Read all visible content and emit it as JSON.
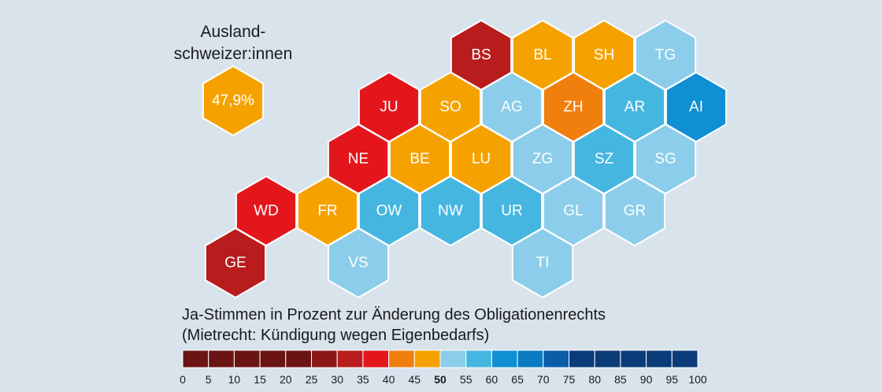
{
  "abroad": {
    "title_line1": "Ausland-",
    "title_line2": "schweizer:innen",
    "value_label": "47,9%",
    "color": "#f5a200"
  },
  "map": {
    "stroke": "#ffffff",
    "cantons": [
      {
        "code": "BS",
        "col": 2,
        "row": 0,
        "color": "#b81c1c"
      },
      {
        "code": "BL",
        "col": 3,
        "row": 0,
        "color": "#f5a200"
      },
      {
        "code": "SH",
        "col": 4,
        "row": 0,
        "color": "#f5a200"
      },
      {
        "code": "TG",
        "col": 5,
        "row": 0,
        "color": "#8bcdea"
      },
      {
        "code": "JU",
        "col": 1,
        "row": 1,
        "color": "#e3161c"
      },
      {
        "code": "SO",
        "col": 2,
        "row": 1,
        "color": "#f5a200"
      },
      {
        "code": "AG",
        "col": 3,
        "row": 1,
        "color": "#8bcdea"
      },
      {
        "code": "ZH",
        "col": 4,
        "row": 1,
        "color": "#f07f0e"
      },
      {
        "code": "AR",
        "col": 5,
        "row": 1,
        "color": "#45b6e0"
      },
      {
        "code": "AI",
        "col": 6,
        "row": 1,
        "color": "#0f8fd4"
      },
      {
        "code": "NE",
        "col": 1,
        "row": 2,
        "color": "#e3161c"
      },
      {
        "code": "BE",
        "col": 2,
        "row": 2,
        "color": "#f5a200"
      },
      {
        "code": "LU",
        "col": 3,
        "row": 2,
        "color": "#f5a200"
      },
      {
        "code": "ZG",
        "col": 4,
        "row": 2,
        "color": "#8bcdea"
      },
      {
        "code": "SZ",
        "col": 5,
        "row": 2,
        "color": "#45b6e0"
      },
      {
        "code": "SG",
        "col": 6,
        "row": 2,
        "color": "#8bcdea"
      },
      {
        "code": "WD",
        "col": 0,
        "row": 3,
        "color": "#e3161c"
      },
      {
        "code": "FR",
        "col": 1,
        "row": 3,
        "color": "#f5a200"
      },
      {
        "code": "OW",
        "col": 2,
        "row": 3,
        "color": "#45b6e0"
      },
      {
        "code": "NW",
        "col": 3,
        "row": 3,
        "color": "#45b6e0"
      },
      {
        "code": "UR",
        "col": 4,
        "row": 3,
        "color": "#45b6e0"
      },
      {
        "code": "GL",
        "col": 5,
        "row": 3,
        "color": "#8bcdea"
      },
      {
        "code": "GR",
        "col": 6,
        "row": 3,
        "color": "#8bcdea"
      },
      {
        "code": "GE",
        "col": 0,
        "row": 4,
        "color": "#b81c1c"
      },
      {
        "code": "VS",
        "col": 2,
        "row": 4,
        "color": "#8bcdea"
      },
      {
        "code": "TI",
        "col": 5,
        "row": 4,
        "color": "#8bcdea"
      }
    ]
  },
  "legend": {
    "title_line1": "Ja-Stimmen in Prozent zur Änderung des Obligationenrechts",
    "title_line2": "(Mietrecht: Kündigung wegen Eigenbedarfs)",
    "bins": [
      {
        "from": 0,
        "to": 5,
        "color": "#6b1414"
      },
      {
        "from": 5,
        "to": 10,
        "color": "#6b1414"
      },
      {
        "from": 10,
        "to": 15,
        "color": "#6b1414"
      },
      {
        "from": 15,
        "to": 20,
        "color": "#6b1414"
      },
      {
        "from": 20,
        "to": 25,
        "color": "#6b1414"
      },
      {
        "from": 25,
        "to": 30,
        "color": "#8c1717"
      },
      {
        "from": 30,
        "to": 35,
        "color": "#b81c1c"
      },
      {
        "from": 35,
        "to": 40,
        "color": "#e3161c"
      },
      {
        "from": 40,
        "to": 45,
        "color": "#f07f0e"
      },
      {
        "from": 45,
        "to": 50,
        "color": "#f5a200"
      },
      {
        "from": 50,
        "to": 55,
        "color": "#8bcdea"
      },
      {
        "from": 55,
        "to": 60,
        "color": "#45b6e0"
      },
      {
        "from": 60,
        "to": 65,
        "color": "#0f8fd4"
      },
      {
        "from": 65,
        "to": 70,
        "color": "#0a7cc1"
      },
      {
        "from": 70,
        "to": 75,
        "color": "#0a5ea8"
      },
      {
        "from": 75,
        "to": 80,
        "color": "#0b3b78"
      },
      {
        "from": 80,
        "to": 85,
        "color": "#0b3b78"
      },
      {
        "from": 85,
        "to": 90,
        "color": "#0b3b78"
      },
      {
        "from": 90,
        "to": 95,
        "color": "#0b3b78"
      },
      {
        "from": 95,
        "to": 100,
        "color": "#0b3b78"
      }
    ],
    "ticks": [
      "0",
      "5",
      "10",
      "15",
      "20",
      "25",
      "30",
      "35",
      "40",
      "45",
      "50",
      "55",
      "60",
      "65",
      "70",
      "75",
      "80",
      "85",
      "90",
      "95",
      "100"
    ],
    "emphasized_tick": "50"
  }
}
